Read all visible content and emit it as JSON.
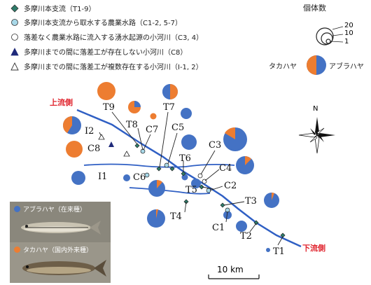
{
  "legend": {
    "t_label": "多摩川本支流（T1-9）",
    "c_intake_label": "多摩川本支流から取水する農業水路（C1-2, 5-7）",
    "c_spring_label": "落差なく農業水路に流入する湧水起源の小河川（C3, 4）",
    "c8_label": "多摩川までの間に落差工が存在しない小河川（C8）",
    "i_label": "多摩川までの間に落差工が複数存在する小河川（I-1, 2）"
  },
  "size_legend": {
    "title": "個体数",
    "values": [
      "20",
      "10",
      "1"
    ]
  },
  "pie_legend": {
    "left_label": "タカハヤ",
    "right_label": "アブラハヤ"
  },
  "direction": {
    "upstream": "上流側",
    "downstream": "下流側"
  },
  "north_label": "N",
  "scale_bar_label": "10 km",
  "photo_native": "アブラハヤ（在来種）",
  "photo_introduced": "タカハヤ（国内外来種）",
  "colors": {
    "abura": "#4472c4",
    "takaha": "#ed7d31",
    "river": "#2f5fc4",
    "site_marker": "#2e7d6b",
    "red_text": "#e0232d"
  },
  "site_labels": [
    "T9",
    "T8",
    "T7",
    "T6",
    "T5",
    "T4",
    "T3",
    "T2",
    "T1",
    "C7",
    "C5",
    "C3",
    "C4",
    "C2",
    "C1",
    "C6",
    "C8",
    "I2",
    "I1"
  ]
}
